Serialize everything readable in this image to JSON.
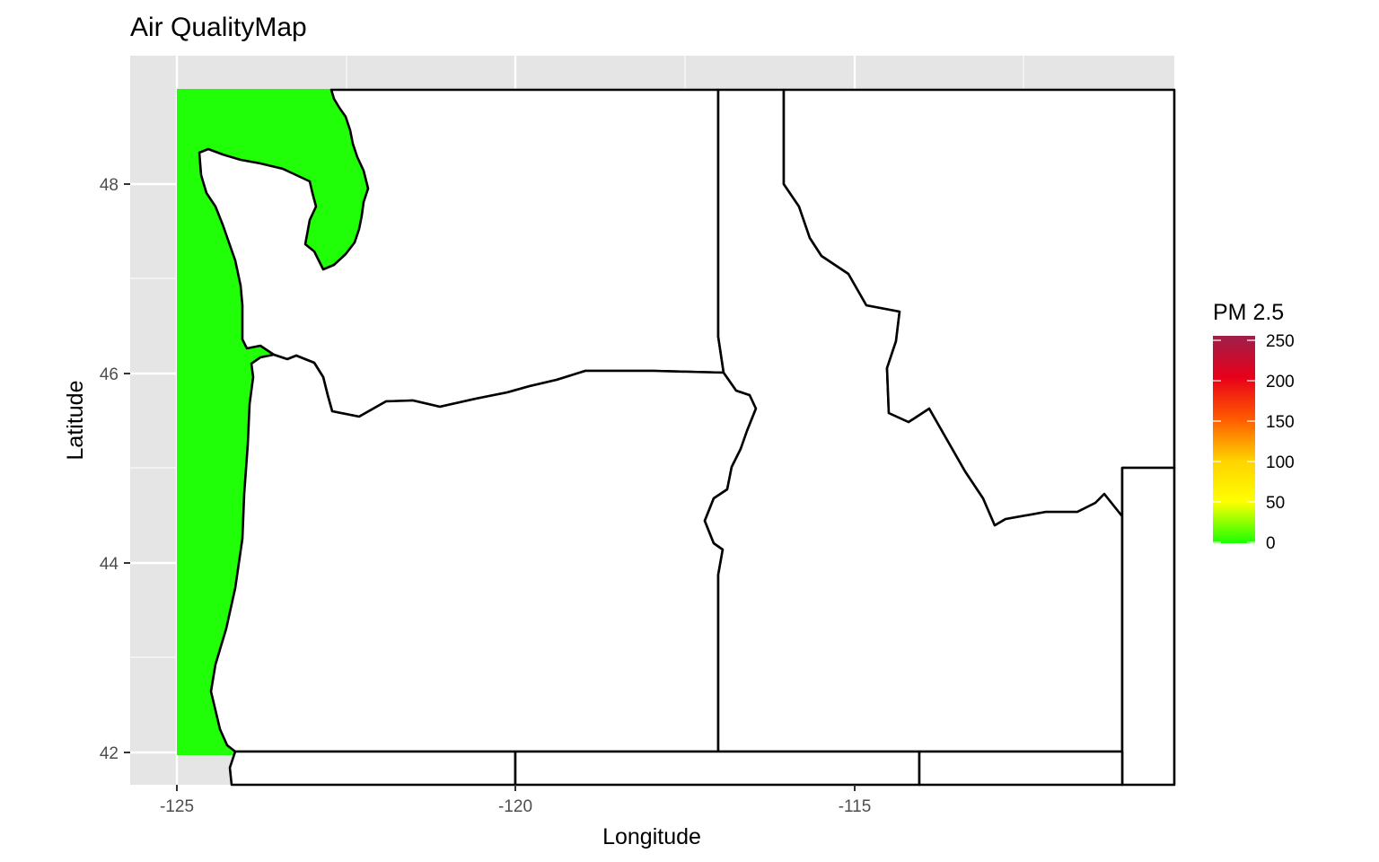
{
  "plot": {
    "title": "Air QualityMap",
    "xlabel": "Longitude",
    "ylabel": "Latitude",
    "x_ticks": [
      "-125",
      "-120",
      "-115"
    ],
    "y_ticks": [
      "48",
      "46",
      "44",
      "42"
    ]
  },
  "legend": {
    "title": "PM 2.5",
    "labels": [
      "250",
      "200",
      "150",
      "100",
      "50",
      "0"
    ],
    "colors": [
      "#9e1f4a",
      "#e8001a",
      "#ff5a00",
      "#ffd200",
      "#ffff00",
      "#1bff00"
    ]
  },
  "map": {
    "ocean_fill_color": "#21ff08",
    "land_fill_color": "#ffffff",
    "panel_background": "#e5e5e5",
    "region_names": [
      "washington",
      "oregon",
      "idaho"
    ]
  }
}
